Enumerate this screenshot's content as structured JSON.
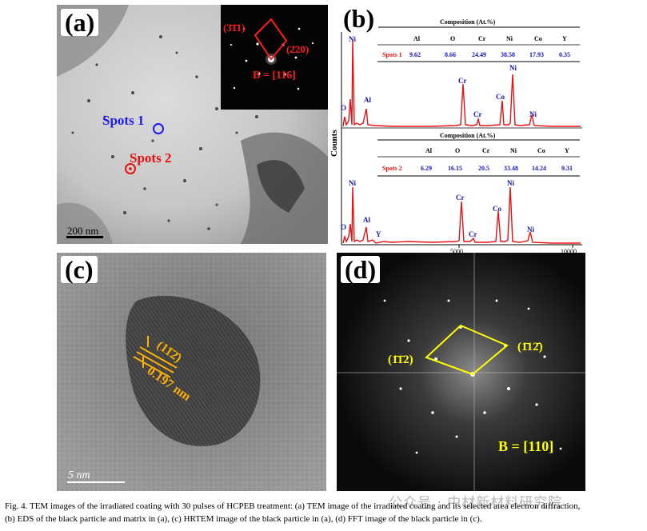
{
  "panel_a": {
    "label": "(a)",
    "inset": {
      "plane1": "(3̄1̄1)",
      "plane2": "(2̄20)",
      "zone_axis": "B = [116]"
    },
    "spot1": "Spots 1",
    "spot2": "Spots 2",
    "scalebar": "200 nm"
  },
  "panel_b": {
    "label": "(b)",
    "ylabel": "Counts",
    "x_ticks": [
      "5000",
      "10000"
    ],
    "table_title": "Composition (At.%)",
    "columns": [
      "Al",
      "O",
      "Cr",
      "Ni",
      "Co",
      "Y"
    ],
    "rows": [
      {
        "name": "Spots 1",
        "values": [
          "9.62",
          "8.66",
          "24.49",
          "38.58",
          "17.93",
          "0.35"
        ]
      },
      {
        "name": "Spots 2",
        "values": [
          "6.29",
          "16.15",
          "20.5",
          "33.48",
          "14.24",
          "9.31"
        ]
      }
    ],
    "spectrum1_peaks": [
      "O",
      "Ni",
      "Al",
      "Cr",
      "Cr",
      "Co",
      "Ni",
      "Ni"
    ],
    "spectrum2_peaks": [
      "O",
      "Ni",
      "Al",
      "Y",
      "Cr",
      "Cr",
      "Co",
      "Ni",
      "Ni"
    ],
    "colors": {
      "spectrum": "#e81010",
      "peak_label": "#1414c8",
      "row_label": "#e81010"
    }
  },
  "panel_c": {
    "label": "(c)",
    "plane": "(11̄2̄)",
    "spacing": "0.197 nm",
    "scalebar": "5 nm",
    "color": "#ffb000"
  },
  "panel_d": {
    "label": "(d)",
    "plane_left": "(1̄1̄2)",
    "plane_right": "(1̄12̄)",
    "zone_axis": "B = [110]",
    "color": "#ffff00"
  },
  "caption": {
    "line1": "Fig. 4. TEM images of the irradiated coating with 30 pulses of HCPEB treatment: (a) TEM image of the irradiated coating and its selected area electron diffraction,",
    "line2": "(b) EDS of the black particle and matrix in (a), (c) HRTEM image of the black particle in (a), (d) FFT image of the black particle in (c)."
  },
  "watermark": "公众号 · 中材新材料研究院"
}
